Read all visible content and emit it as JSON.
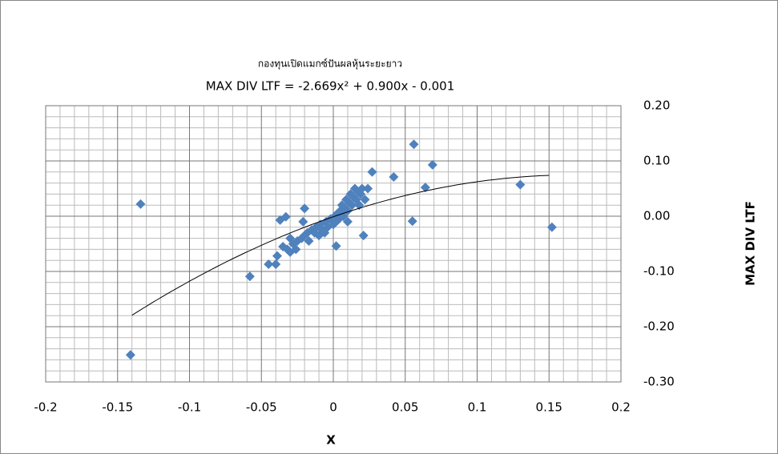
{
  "chart_data": {
    "type": "scatter",
    "title": "กองทุนเปิดแมกซ์ปันผลหุ้นระยะยาว",
    "subtitle": "MAX DIV LTF = -2.669x² + 0.900x - 0.001",
    "x_label": "X",
    "y_label": "MAX DIV LTF",
    "xlim": [
      -0.2,
      0.2
    ],
    "xticks": [
      -0.2,
      -0.15,
      -0.1,
      -0.05,
      0,
      0.05,
      0.1,
      0.15,
      0.2
    ],
    "ylim": [
      -0.3,
      0.2
    ],
    "yticks": [
      {
        "value": -0.3,
        "label": "-0.30"
      },
      {
        "value": -0.2,
        "label": "-0.20"
      },
      {
        "value": -0.1,
        "label": "-0.10"
      },
      {
        "value": 0,
        "label": "0.00"
      },
      {
        "value": 0.1,
        "label": "0.10"
      },
      {
        "value": 0.2,
        "label": "0.20"
      }
    ],
    "grid": true,
    "color": "#4f81bd",
    "series": [
      {
        "name": "MAX DIV LTF",
        "color": "#4f81bd",
        "x": [
          -0.134,
          -0.141,
          -0.058,
          0.056,
          0.069,
          0.042,
          0.027,
          0.064,
          0.13,
          0.152,
          0.055,
          0.021,
          0.002,
          -0.02,
          -0.033,
          -0.037,
          -0.045,
          -0.039,
          -0.04,
          -0.035,
          -0.032,
          -0.03,
          -0.028,
          -0.025,
          -0.022,
          -0.02,
          -0.018,
          -0.017,
          -0.015,
          -0.013,
          -0.012,
          -0.01,
          -0.009,
          -0.008,
          -0.006,
          -0.005,
          -0.004,
          -0.002,
          0,
          0.001,
          0.002,
          0.003,
          0.004,
          0.005,
          0.006,
          0.007,
          0.008,
          0.009,
          0.01,
          0.011,
          0.012,
          0.013,
          0.014,
          0.015,
          0.016,
          0.017,
          0.018,
          0.019,
          0.02,
          0.022,
          0.01,
          -0.021,
          0.024,
          -0.03,
          -0.026
        ],
        "values": [
          0.022,
          -0.251,
          -0.109,
          0.13,
          0.093,
          0.071,
          0.08,
          0.052,
          0.057,
          -0.02,
          -0.009,
          -0.035,
          -0.054,
          0.014,
          -0.001,
          -0.007,
          -0.087,
          -0.072,
          -0.087,
          -0.055,
          -0.06,
          -0.065,
          -0.05,
          -0.045,
          -0.04,
          -0.035,
          -0.03,
          -0.045,
          -0.025,
          -0.03,
          -0.02,
          -0.035,
          -0.015,
          -0.025,
          -0.03,
          -0.01,
          -0.02,
          -0.005,
          -0.015,
          0,
          -0.01,
          0.005,
          -0.005,
          0.01,
          0.02,
          0,
          0.015,
          0.03,
          0.01,
          0.025,
          0.04,
          0.02,
          0.035,
          0.05,
          0.03,
          0.045,
          0.02,
          0.04,
          0.05,
          0.03,
          -0.01,
          -0.01,
          0.05,
          -0.04,
          -0.06
        ]
      }
    ],
    "trendline": {
      "coefficients": [
        -2.669,
        0.9,
        -0.001
      ],
      "xlim": [
        -0.14,
        0.15
      ]
    }
  }
}
